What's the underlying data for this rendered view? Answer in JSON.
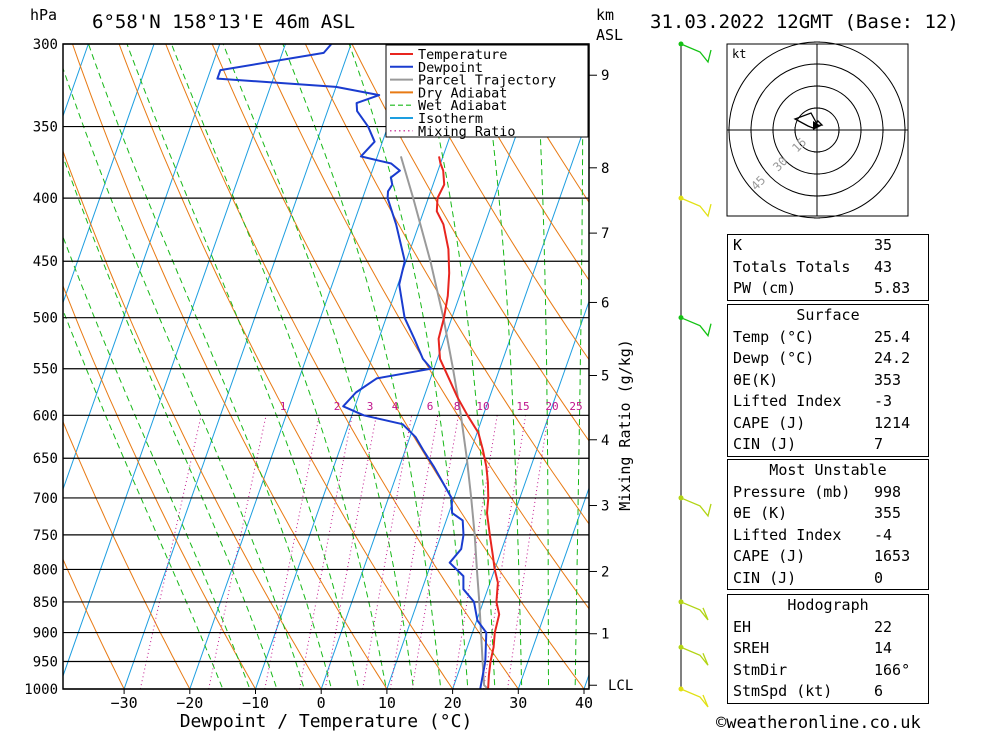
{
  "header": {
    "hpa_unit": "hPa",
    "location": "6°58'N 158°13'E 46m ASL",
    "km_unit": "km",
    "asl_unit": "ASL",
    "datetime": "31.03.2022 12GMT (Base: 12)"
  },
  "legend": {
    "items": [
      {
        "label": "Temperature",
        "color": "#e8251f",
        "style": "solid"
      },
      {
        "label": "Dewpoint",
        "color": "#1a3ccf",
        "style": "solid"
      },
      {
        "label": "Parcel Trajectory",
        "color": "#9a9a9a",
        "style": "solid"
      },
      {
        "label": "Dry Adiabat",
        "color": "#e87a14",
        "style": "solid"
      },
      {
        "label": "Wet Adiabat",
        "color": "#18b818",
        "style": "dashed"
      },
      {
        "label": "Isotherm",
        "color": "#1d9ee0",
        "style": "solid"
      },
      {
        "label": "Mixing Ratio",
        "color": "#c0148c",
        "style": "dotted"
      }
    ]
  },
  "chart_data": {
    "type": "skew-t",
    "xlabel": "Dewpoint / Temperature (°C)",
    "ylabel_left": "hPa",
    "ylabel_right": "Mixing Ratio (g/kg)",
    "x_ticks": [
      -30,
      -20,
      -10,
      0,
      10,
      20,
      30,
      40
    ],
    "pressure_levels": [
      300,
      350,
      400,
      450,
      500,
      550,
      600,
      650,
      700,
      750,
      800,
      850,
      900,
      950,
      1000
    ],
    "height_ticks_km": [
      {
        "label": "9",
        "p": 318
      },
      {
        "label": "8",
        "p": 378
      },
      {
        "label": "7",
        "p": 427
      },
      {
        "label": "6",
        "p": 486
      },
      {
        "label": "5",
        "p": 557
      },
      {
        "label": "4",
        "p": 628
      },
      {
        "label": "3",
        "p": 710
      },
      {
        "label": "2",
        "p": 803
      },
      {
        "label": "1",
        "p": 902
      },
      {
        "label": "LCL",
        "p": 993
      }
    ],
    "mixing_ratio_labels": [
      "1",
      "2",
      "3",
      "4",
      "6",
      "8",
      "10",
      "15",
      "20",
      "25"
    ],
    "temperature": [
      [
        370,
        -10.6
      ],
      [
        375,
        -10
      ],
      [
        380,
        -9.2
      ],
      [
        390,
        -8.3
      ],
      [
        400,
        -8.6
      ],
      [
        410,
        -8
      ],
      [
        420,
        -6.3
      ],
      [
        440,
        -4.2
      ],
      [
        460,
        -2.8
      ],
      [
        480,
        -1.8
      ],
      [
        500,
        -1.2
      ],
      [
        520,
        -0.9
      ],
      [
        540,
        0.4
      ],
      [
        560,
        2.8
      ],
      [
        580,
        5.1
      ],
      [
        600,
        7.6
      ],
      [
        620,
        10.2
      ],
      [
        640,
        11.8
      ],
      [
        660,
        13.2
      ],
      [
        680,
        14.3
      ],
      [
        700,
        15.2
      ],
      [
        720,
        15.8
      ],
      [
        750,
        17.4
      ],
      [
        780,
        19.0
      ],
      [
        800,
        20.0
      ],
      [
        820,
        21.2
      ],
      [
        850,
        22.0
      ],
      [
        870,
        23.1
      ],
      [
        900,
        23.4
      ],
      [
        925,
        24.0
      ],
      [
        950,
        24.3
      ],
      [
        975,
        24.8
      ],
      [
        1000,
        25.4
      ]
    ],
    "dewpoint": [
      [
        300,
        -33
      ],
      [
        305,
        -33.7
      ],
      [
        315,
        -48.5
      ],
      [
        320,
        -48.5
      ],
      [
        325,
        -30
      ],
      [
        330,
        -23
      ],
      [
        335,
        -26
      ],
      [
        340,
        -25.5
      ],
      [
        350,
        -23
      ],
      [
        360,
        -21.2
      ],
      [
        370,
        -22.5
      ],
      [
        375,
        -17.5
      ],
      [
        380,
        -15.8
      ],
      [
        385,
        -16.8
      ],
      [
        390,
        -16.2
      ],
      [
        395,
        -16.5
      ],
      [
        400,
        -16.2
      ],
      [
        420,
        -13.5
      ],
      [
        450,
        -10.2
      ],
      [
        460,
        -10
      ],
      [
        470,
        -9.8
      ],
      [
        500,
        -7.2
      ],
      [
        520,
        -4.6
      ],
      [
        540,
        -2.2
      ],
      [
        550,
        -0.4
      ],
      [
        560,
        -8.2
      ],
      [
        575,
        -10.6
      ],
      [
        590,
        -11.8
      ],
      [
        600,
        -8.2
      ],
      [
        610,
        -1.8
      ],
      [
        625,
        0.9
      ],
      [
        640,
        2.7
      ],
      [
        660,
        5.2
      ],
      [
        700,
        9.6
      ],
      [
        720,
        10.5
      ],
      [
        730,
        12.5
      ],
      [
        750,
        13.4
      ],
      [
        770,
        13.8
      ],
      [
        790,
        12.8
      ],
      [
        810,
        15.6
      ],
      [
        830,
        16.3
      ],
      [
        850,
        18.6
      ],
      [
        880,
        20.1
      ],
      [
        900,
        22.1
      ],
      [
        950,
        23.5
      ],
      [
        1000,
        24.2
      ]
    ],
    "parcel": [
      [
        1000,
        25.4
      ],
      [
        993,
        24.6
      ],
      [
        950,
        23.1
      ],
      [
        900,
        21.3
      ],
      [
        850,
        19.4
      ],
      [
        800,
        17.3
      ],
      [
        750,
        15.1
      ],
      [
        700,
        12.6
      ],
      [
        650,
        9.8
      ],
      [
        600,
        6.6
      ],
      [
        550,
        2.9
      ],
      [
        500,
        -1.3
      ],
      [
        450,
        -6.3
      ],
      [
        400,
        -12.3
      ],
      [
        370,
        -16.4
      ]
    ],
    "wind_barbs": [
      {
        "p": 300,
        "color": "#14c214"
      },
      {
        "p": 400,
        "color": "#e1e114"
      },
      {
        "p": 500,
        "color": "#14c214"
      },
      {
        "p": 700,
        "color": "#b2d414"
      },
      {
        "p": 850,
        "color": "#b2d414"
      },
      {
        "p": 925,
        "color": "#b2d414"
      },
      {
        "p": 1000,
        "color": "#e1e114"
      }
    ],
    "hodograph": {
      "unit_label": "kt",
      "ring_labels": [
        "15",
        "30",
        "45"
      ]
    }
  },
  "indices": {
    "rows": [
      {
        "label": "K",
        "value": "35"
      },
      {
        "label": "Totals Totals",
        "value": "43"
      },
      {
        "label": "PW (cm)",
        "value": "5.83"
      }
    ]
  },
  "surface": {
    "title": "Surface",
    "rows": [
      {
        "label": "Temp (°C)",
        "value": "25.4"
      },
      {
        "label": "Dewp (°C)",
        "value": "24.2"
      },
      {
        "label": "θE(K)",
        "value": "353"
      },
      {
        "label": "Lifted Index",
        "value": "-3"
      },
      {
        "label": "CAPE (J)",
        "value": "1214"
      },
      {
        "label": "CIN (J)",
        "value": "7"
      }
    ]
  },
  "most_unstable": {
    "title": "Most Unstable",
    "rows": [
      {
        "label": "Pressure (mb)",
        "value": "998"
      },
      {
        "label": "θE (K)",
        "value": "355"
      },
      {
        "label": "Lifted Index",
        "value": "-4"
      },
      {
        "label": "CAPE (J)",
        "value": "1653"
      },
      {
        "label": "CIN (J)",
        "value": "0"
      }
    ]
  },
  "hodograph_table": {
    "title": "Hodograph",
    "rows": [
      {
        "label": "EH",
        "value": "22"
      },
      {
        "label": "SREH",
        "value": "14"
      },
      {
        "label": "StmDir",
        "value": "166°"
      },
      {
        "label": "StmSpd (kt)",
        "value": "6"
      }
    ]
  },
  "footer": {
    "credit": "©weatheronline.co.uk"
  }
}
